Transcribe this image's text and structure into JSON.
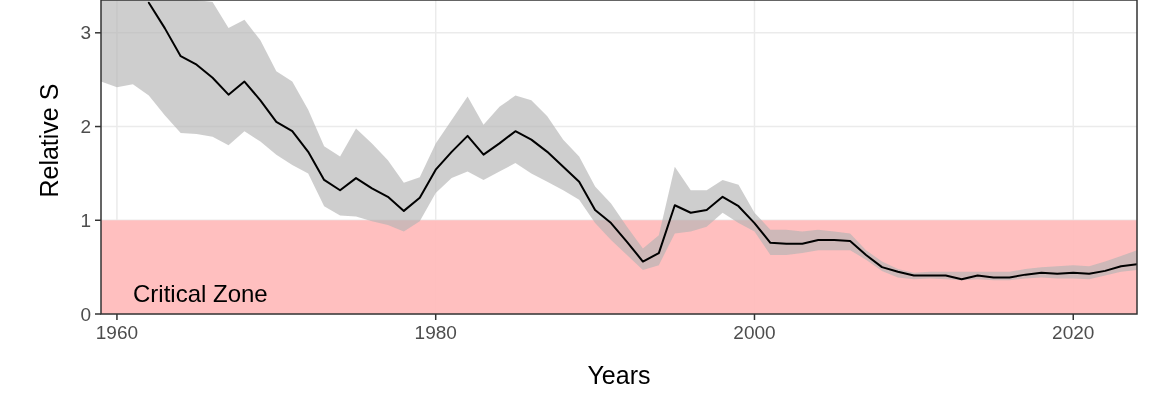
{
  "chart_data": {
    "type": "line",
    "xlabel": "Years",
    "ylabel": "Relative S",
    "x": [
      1959,
      1960,
      1961,
      1962,
      1963,
      1964,
      1965,
      1966,
      1967,
      1968,
      1969,
      1970,
      1971,
      1972,
      1973,
      1974,
      1975,
      1976,
      1977,
      1978,
      1979,
      1980,
      1981,
      1982,
      1983,
      1984,
      1985,
      1986,
      1987,
      1988,
      1989,
      1990,
      1991,
      1992,
      1993,
      1994,
      1995,
      1996,
      1997,
      1998,
      1999,
      2000,
      2001,
      2002,
      2003,
      2004,
      2005,
      2006,
      2007,
      2008,
      2009,
      2010,
      2011,
      2012,
      2013,
      2014,
      2015,
      2016,
      2017,
      2018,
      2019,
      2020,
      2021,
      2022,
      2023,
      2024
    ],
    "series": [
      {
        "color": "#000000",
        "values": [
          null,
          null,
          null,
          3.32,
          3.05,
          2.75,
          2.66,
          2.52,
          2.34,
          2.48,
          2.28,
          2.05,
          1.95,
          1.73,
          1.43,
          1.32,
          1.45,
          1.34,
          1.25,
          1.1,
          1.24,
          1.54,
          1.73,
          1.9,
          1.7,
          1.82,
          1.95,
          1.86,
          1.73,
          1.57,
          1.41,
          1.11,
          0.97,
          0.77,
          0.56,
          0.65,
          1.16,
          1.08,
          1.11,
          1.25,
          1.15,
          0.97,
          0.76,
          0.75,
          0.75,
          0.79,
          0.79,
          0.78,
          0.63,
          0.5,
          0.45,
          0.41,
          0.41,
          0.41,
          0.37,
          0.41,
          0.39,
          0.39,
          0.42,
          0.44,
          0.43,
          0.44,
          0.43,
          0.46,
          0.51,
          0.53
        ],
        "lower": [
          2.48,
          2.42,
          2.45,
          2.33,
          2.12,
          1.93,
          1.92,
          1.89,
          1.8,
          1.95,
          1.84,
          1.7,
          1.59,
          1.5,
          1.15,
          1.05,
          1.04,
          0.99,
          0.95,
          0.88,
          0.99,
          1.29,
          1.45,
          1.52,
          1.43,
          1.52,
          1.61,
          1.5,
          1.41,
          1.32,
          1.22,
          0.97,
          0.79,
          0.63,
          0.47,
          0.52,
          0.86,
          0.88,
          0.93,
          1.08,
          0.97,
          0.88,
          0.63,
          0.63,
          0.65,
          0.68,
          0.68,
          0.68,
          0.58,
          0.46,
          0.39,
          0.37,
          0.38,
          0.37,
          0.36,
          0.37,
          0.36,
          0.36,
          0.38,
          0.39,
          0.38,
          0.38,
          0.37,
          0.41,
          0.45,
          0.47
        ],
        "upper": [
          3.35,
          3.35,
          3.35,
          3.35,
          3.35,
          3.35,
          3.35,
          3.33,
          3.05,
          3.14,
          2.92,
          2.59,
          2.48,
          2.18,
          1.79,
          1.68,
          1.98,
          1.82,
          1.64,
          1.4,
          1.46,
          1.82,
          2.07,
          2.32,
          2.02,
          2.21,
          2.33,
          2.28,
          2.11,
          1.86,
          1.68,
          1.36,
          1.18,
          0.93,
          0.7,
          0.84,
          1.57,
          1.32,
          1.32,
          1.43,
          1.38,
          1.08,
          0.9,
          0.9,
          0.88,
          0.9,
          0.88,
          0.86,
          0.68,
          0.56,
          0.48,
          0.44,
          0.45,
          0.45,
          0.45,
          0.45,
          0.45,
          0.45,
          0.48,
          0.5,
          0.51,
          0.52,
          0.51,
          0.56,
          0.62,
          0.68
        ]
      }
    ],
    "xlim": [
      1959,
      2024
    ],
    "ylim": [
      0,
      3.35
    ],
    "xticks": [
      1960,
      1980,
      2000,
      2020
    ],
    "yticks": [
      0,
      1,
      2,
      3
    ],
    "grid": true,
    "bands": [
      {
        "axis": "y",
        "from": 0,
        "to": 1,
        "label": "Critical Zone",
        "color": "#ffbcbc"
      }
    ]
  }
}
